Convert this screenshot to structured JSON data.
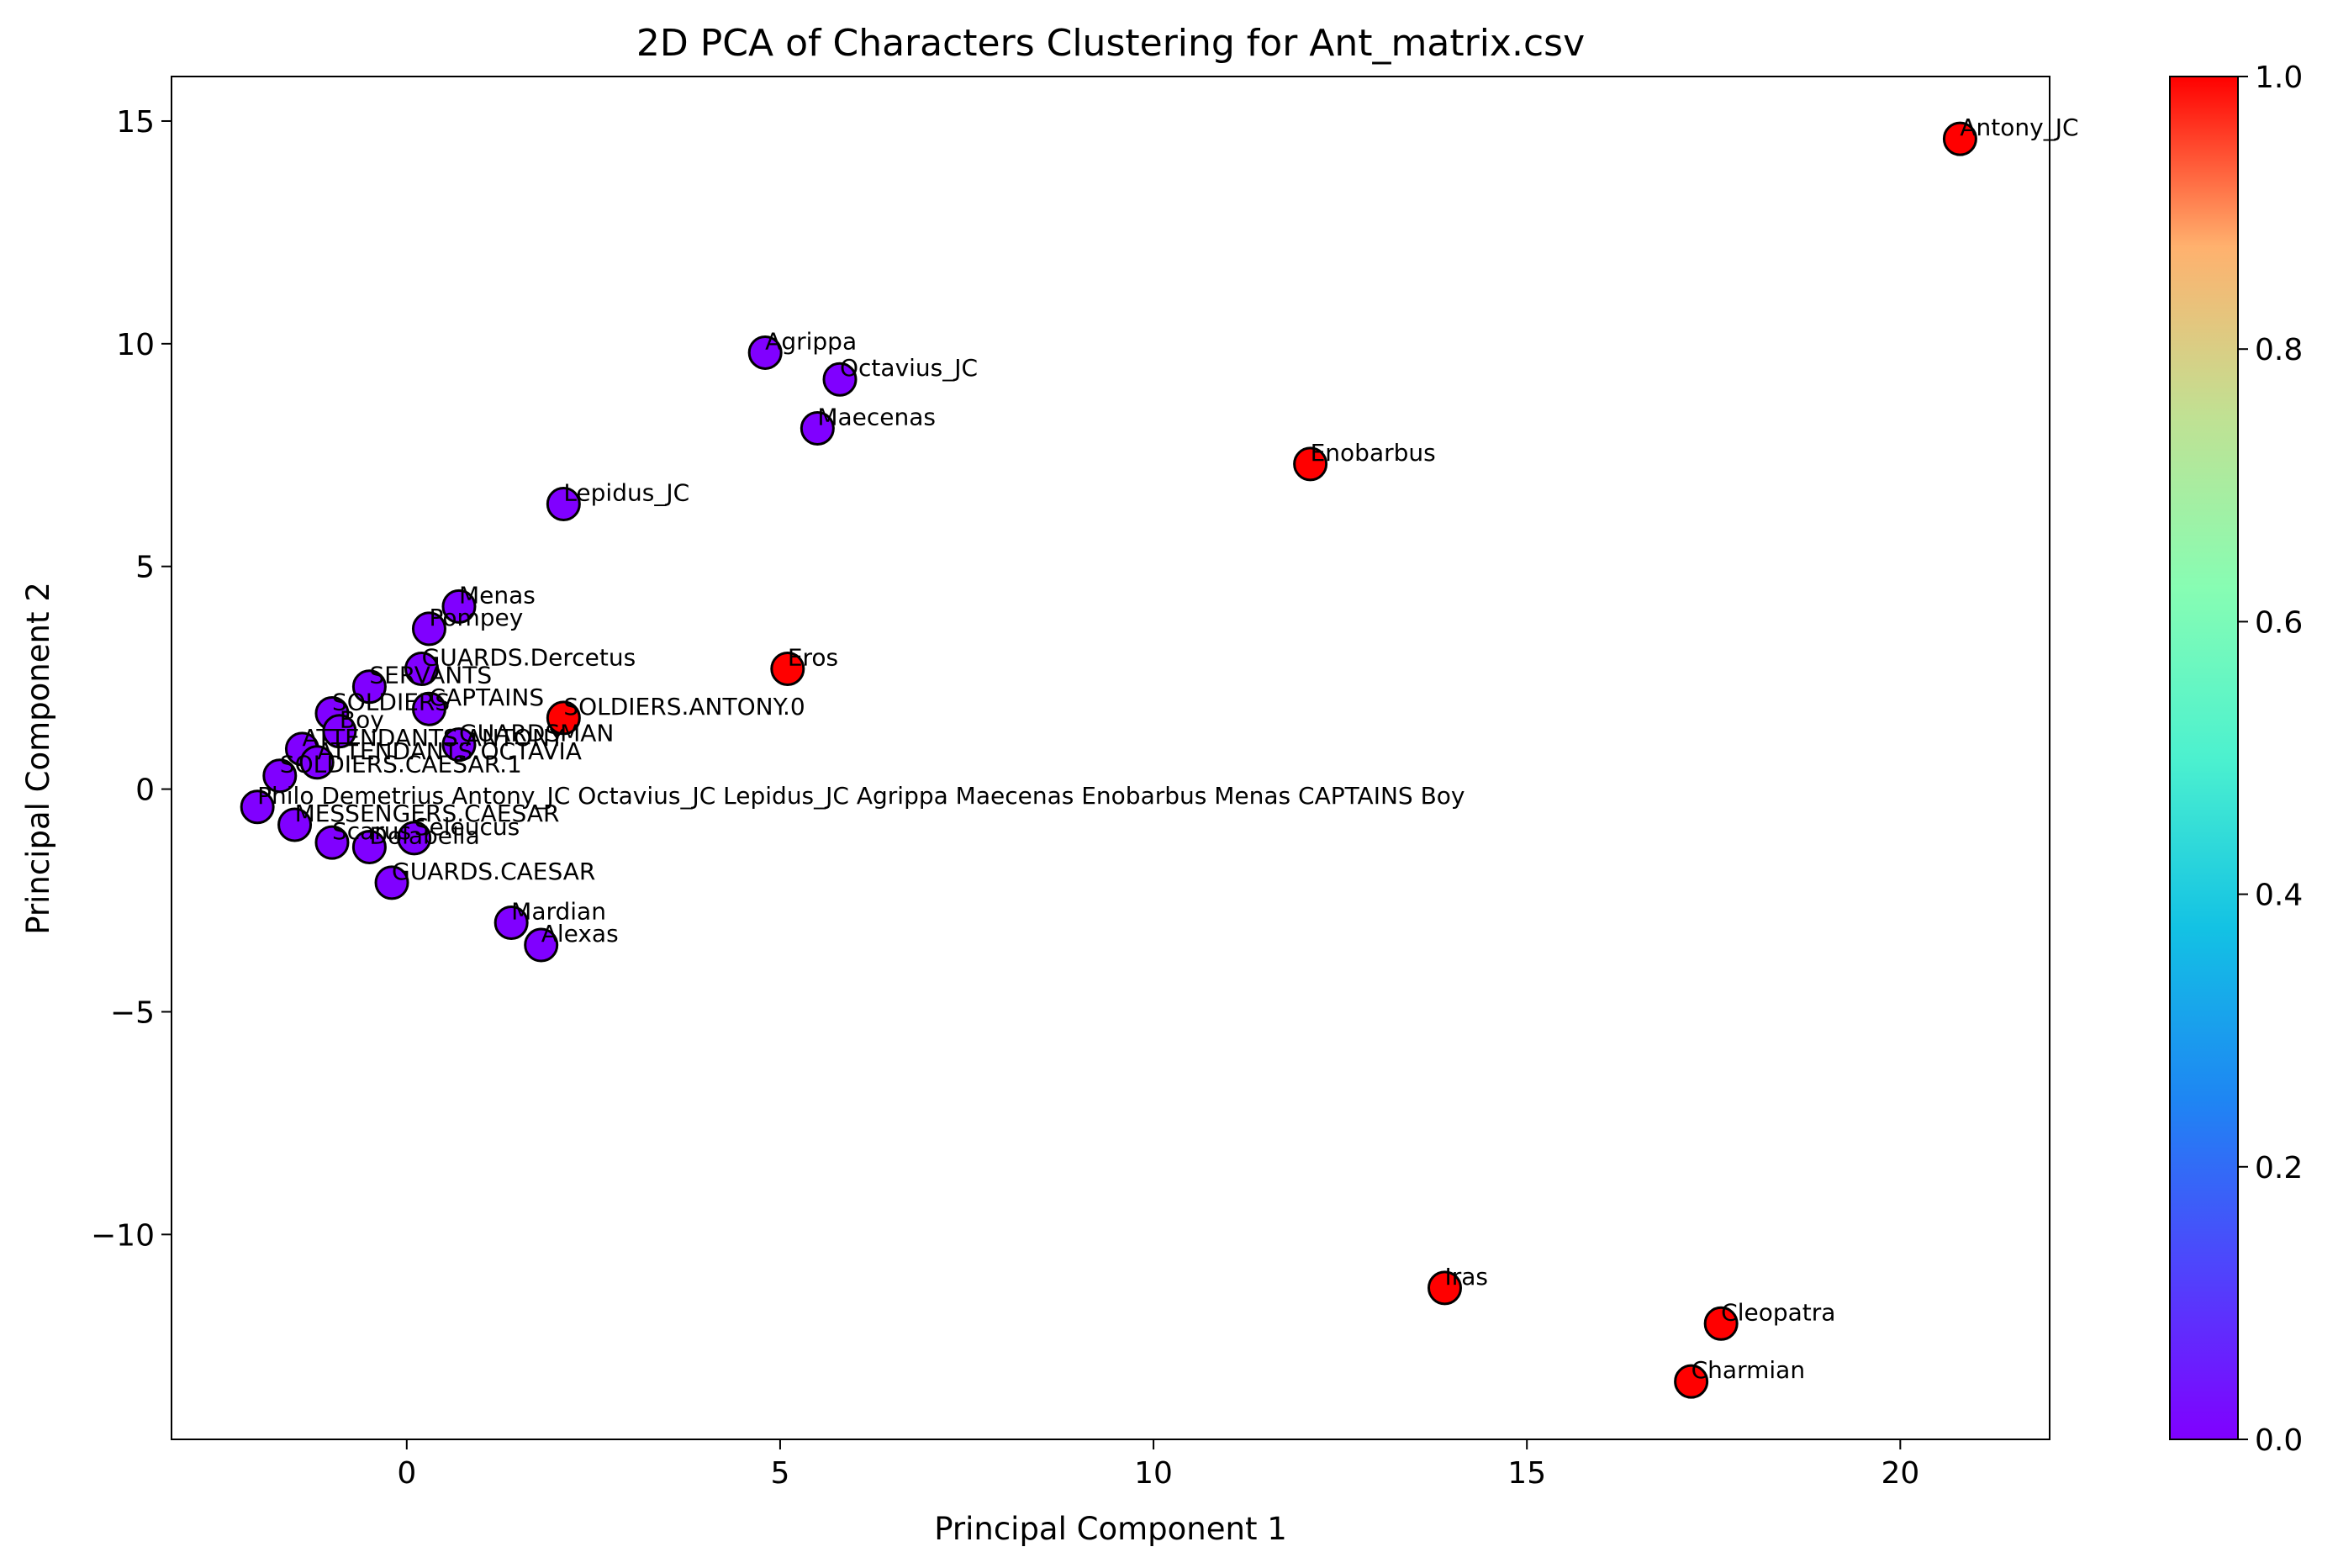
{
  "chart_data": {
    "type": "scatter",
    "title": "2D PCA of Characters Clustering for Ant_matrix.csv",
    "xlabel": "Principal Component 1",
    "ylabel": "Principal Component 2",
    "xlim": [
      -3.15,
      22
    ],
    "ylim": [
      -14.6,
      16
    ],
    "xticks": [
      0,
      5,
      10,
      15,
      20
    ],
    "yticks": [
      -10,
      -5,
      0,
      5,
      10,
      15
    ],
    "xtick_labels": [
      "0",
      "5",
      "10",
      "15",
      "20"
    ],
    "ytick_labels": [
      "−10",
      "−5",
      "0",
      "5",
      "10",
      "15"
    ],
    "grid": false,
    "colormap": "rainbow",
    "colorbar": {
      "range": [
        0,
        1
      ],
      "ticks": [
        "0.0",
        "0.2",
        "0.4",
        "0.6",
        "0.8",
        "1.0"
      ]
    },
    "colors": {
      "cluster_0": "#8000ff",
      "cluster_1": "#ff0000"
    },
    "points": [
      {
        "label": "Antony_JC",
        "x": 20.8,
        "y": 14.6,
        "cluster": 1
      },
      {
        "label": "Agrippa",
        "x": 4.8,
        "y": 9.8,
        "cluster": 0
      },
      {
        "label": "Octavius_JC",
        "x": 5.8,
        "y": 9.2,
        "cluster": 0
      },
      {
        "label": "Maecenas",
        "x": 5.5,
        "y": 8.1,
        "cluster": 0
      },
      {
        "label": "Enobarbus",
        "x": 12.1,
        "y": 7.3,
        "cluster": 1
      },
      {
        "label": "Lepidus_JC",
        "x": 2.1,
        "y": 6.4,
        "cluster": 0
      },
      {
        "label": "Menas",
        "x": 0.7,
        "y": 4.1,
        "cluster": 0
      },
      {
        "label": "Pompey",
        "x": 0.3,
        "y": 3.6,
        "cluster": 0
      },
      {
        "label": "GUARDS.Dercetus",
        "x": 0.2,
        "y": 2.7,
        "cluster": 0
      },
      {
        "label": "Eros",
        "x": 5.1,
        "y": 2.7,
        "cluster": 1
      },
      {
        "label": "SERVANTS",
        "x": -0.5,
        "y": 2.3,
        "cluster": 0
      },
      {
        "label": "CAPTAINS",
        "x": 0.3,
        "y": 1.8,
        "cluster": 0
      },
      {
        "label": "SOLDIERS",
        "x": -1.0,
        "y": 1.7,
        "cluster": 0
      },
      {
        "label": "SOLDIERS.ANTONY.0",
        "x": 2.1,
        "y": 1.6,
        "cluster": 1
      },
      {
        "label": "Boy",
        "x": -0.9,
        "y": 1.3,
        "cluster": 0
      },
      {
        "label": "ATTENDANTS.ANTONY",
        "x": -1.4,
        "y": 0.9,
        "cluster": 0
      },
      {
        "label": "GUARDSMAN",
        "x": 0.7,
        "y": 1.0,
        "cluster": 0
      },
      {
        "label": "ATTENDANTS.OCTAVIA",
        "x": -1.2,
        "y": 0.6,
        "cluster": 0
      },
      {
        "label": "SOLDIERS.CAESAR.1",
        "x": -1.7,
        "y": 0.3,
        "cluster": 0
      },
      {
        "label": "Philo Demetrius Antony_JC Octavius_JC Lepidus_JC Agrippa Maecenas Enobarbus Menas CAPTAINS Boy",
        "x": -2.0,
        "y": -0.4,
        "cluster": 0
      },
      {
        "label": "MESSENGERS.CAESAR",
        "x": -1.5,
        "y": -0.8,
        "cluster": 0
      },
      {
        "label": "Scarus",
        "x": -1.0,
        "y": -1.2,
        "cluster": 0
      },
      {
        "label": "Dolabella",
        "x": -0.5,
        "y": -1.3,
        "cluster": 0
      },
      {
        "label": "Seleucus",
        "x": 0.1,
        "y": -1.1,
        "cluster": 0
      },
      {
        "label": "GUARDS.CAESAR",
        "x": -0.2,
        "y": -2.1,
        "cluster": 0
      },
      {
        "label": "Mardian",
        "x": 1.4,
        "y": -3.0,
        "cluster": 0
      },
      {
        "label": "Alexas",
        "x": 1.8,
        "y": -3.5,
        "cluster": 0
      },
      {
        "label": "Iras",
        "x": 13.9,
        "y": -11.2,
        "cluster": 1
      },
      {
        "label": "Cleopatra",
        "x": 17.6,
        "y": -12.0,
        "cluster": 1
      },
      {
        "label": "Charmian",
        "x": 17.2,
        "y": -13.3,
        "cluster": 1
      }
    ]
  }
}
